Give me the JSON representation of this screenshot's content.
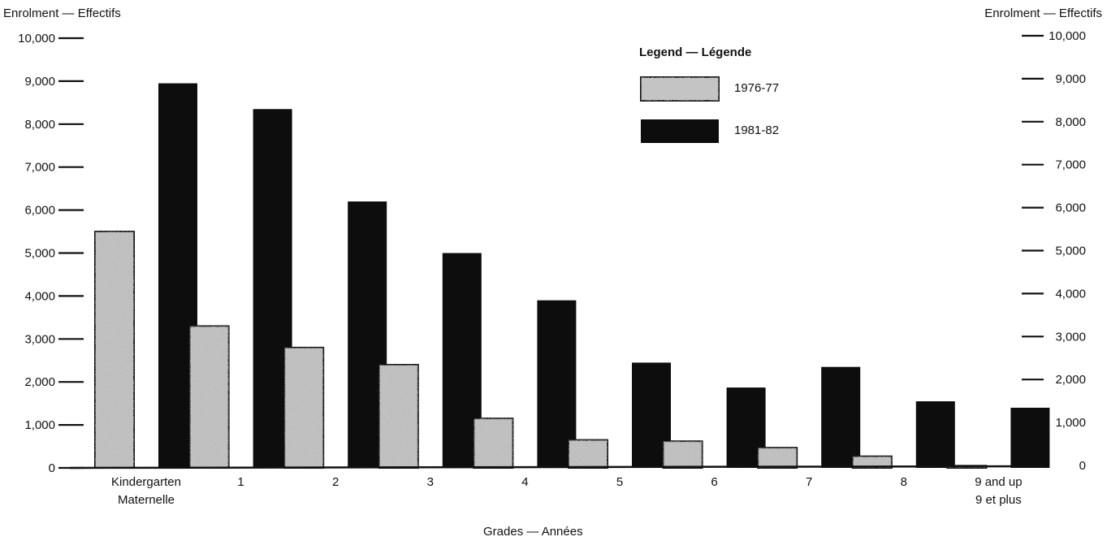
{
  "chart_data": {
    "type": "bar",
    "ylabel_left": "Enrolment — Effectifs",
    "ylabel_right": "Enrolment — Effectifs",
    "xlabel": "Grades — Années",
    "ylim": [
      0,
      10000
    ],
    "yticks": [
      0,
      1000,
      2000,
      3000,
      4000,
      5000,
      6000,
      7000,
      8000,
      9000,
      10000
    ],
    "ytick_labels": [
      "0",
      "1,000",
      "2,000",
      "3,000",
      "4,000",
      "5,000",
      "6,000",
      "7,000",
      "8,000",
      "9,000",
      "10,000"
    ],
    "categories": [
      [
        "Kindergarten",
        "Maternelle"
      ],
      [
        "1"
      ],
      [
        "2"
      ],
      [
        "3"
      ],
      [
        "4"
      ],
      [
        "5"
      ],
      [
        "6"
      ],
      [
        "7"
      ],
      [
        "8"
      ],
      [
        "9 and up",
        "9 et plus"
      ]
    ],
    "series": [
      {
        "name": "1976-77",
        "values": [
          5500,
          3300,
          2800,
          2400,
          1150,
          650,
          620,
          470,
          270,
          50
        ]
      },
      {
        "name": "1981-82",
        "values": [
          8950,
          8350,
          6200,
          5000,
          3900,
          2450,
          1870,
          2350,
          1550,
          1400
        ]
      }
    ],
    "legend": {
      "title": "Legend — Légende",
      "position": "top-right"
    },
    "grid": false
  },
  "colors": {
    "series_1976": "#bdbdbd",
    "series_1981": "#0d0d0d",
    "axis": "#111111"
  }
}
